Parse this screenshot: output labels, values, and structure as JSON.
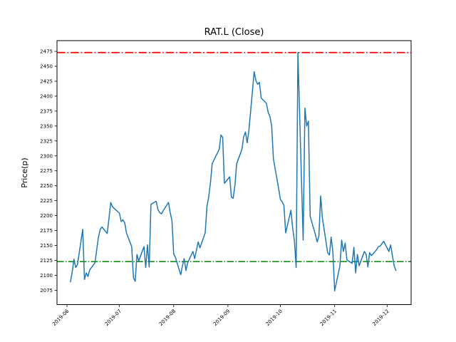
{
  "figure": {
    "title": "RAT.L (Close)",
    "ylabel": "Price(p)",
    "background": "#ffffff",
    "spine_color": "#000000",
    "text_color": "#000000"
  },
  "chart_data": {
    "type": "line",
    "title": "RAT.L (Close)",
    "xlabel": "",
    "ylabel": "Price(p)",
    "grid": false,
    "legend": null,
    "ylim": [
      2051,
      2493
    ],
    "xlim_days_from_2019_06_01": [
      -5.7,
      196.7
    ],
    "yticks": [
      2075,
      2100,
      2125,
      2150,
      2175,
      2200,
      2225,
      2250,
      2275,
      2300,
      2325,
      2350,
      2375,
      2400,
      2425,
      2450,
      2475
    ],
    "xticks": [
      {
        "label": "2019-06",
        "day": 0
      },
      {
        "label": "2019-07",
        "day": 30
      },
      {
        "label": "2019-08",
        "day": 61
      },
      {
        "label": "2019-09",
        "day": 92
      },
      {
        "label": "2019-10",
        "day": 122
      },
      {
        "label": "2019-11",
        "day": 153
      },
      {
        "label": "2019-12",
        "day": 183
      }
    ],
    "reference_lines": [
      {
        "name": "upper-reference",
        "value": 2473,
        "color": "#ff0000",
        "style": "dashdot",
        "width": 1.8
      },
      {
        "name": "lower-reference",
        "value": 2123,
        "color": "#008000",
        "style": "dashdot",
        "width": 1.5
      }
    ],
    "series": [
      {
        "name": "Close",
        "color": "#1f77b4",
        "width": 1.5,
        "points": [
          [
            "2019-06-03",
            2089
          ],
          [
            "2019-06-04",
            2106
          ],
          [
            "2019-06-05",
            2127
          ],
          [
            "2019-06-06",
            2113
          ],
          [
            "2019-06-07",
            2118
          ],
          [
            "2019-06-10",
            2177
          ],
          [
            "2019-06-11",
            2093
          ],
          [
            "2019-06-12",
            2104
          ],
          [
            "2019-06-13",
            2098
          ],
          [
            "2019-06-14",
            2109
          ],
          [
            "2019-06-17",
            2121
          ],
          [
            "2019-06-18",
            2143
          ],
          [
            "2019-06-19",
            2164
          ],
          [
            "2019-06-20",
            2177
          ],
          [
            "2019-06-21",
            2181
          ],
          [
            "2019-06-24",
            2170
          ],
          [
            "2019-06-25",
            2195
          ],
          [
            "2019-06-26",
            2222
          ],
          [
            "2019-06-27",
            2215
          ],
          [
            "2019-06-28",
            2212
          ],
          [
            "2019-07-01",
            2204
          ],
          [
            "2019-07-02",
            2190
          ],
          [
            "2019-07-03",
            2193
          ],
          [
            "2019-07-04",
            2188
          ],
          [
            "2019-07-05",
            2171
          ],
          [
            "2019-07-08",
            2148
          ],
          [
            "2019-07-09",
            2096
          ],
          [
            "2019-07-10",
            2090
          ],
          [
            "2019-07-11",
            2135
          ],
          [
            "2019-07-12",
            2124
          ],
          [
            "2019-07-15",
            2148
          ],
          [
            "2019-07-16",
            2113
          ],
          [
            "2019-07-17",
            2151
          ],
          [
            "2019-07-18",
            2114
          ],
          [
            "2019-07-19",
            2219
          ],
          [
            "2019-07-22",
            2224
          ],
          [
            "2019-07-23",
            2210
          ],
          [
            "2019-07-24",
            2205
          ],
          [
            "2019-07-25",
            2203
          ],
          [
            "2019-07-26",
            2208
          ],
          [
            "2019-07-29",
            2222
          ],
          [
            "2019-07-30",
            2205
          ],
          [
            "2019-07-31",
            2192
          ],
          [
            "2019-08-01",
            2136
          ],
          [
            "2019-08-02",
            2130
          ],
          [
            "2019-08-05",
            2101
          ],
          [
            "2019-08-06",
            2116
          ],
          [
            "2019-08-07",
            2128
          ],
          [
            "2019-08-08",
            2108
          ],
          [
            "2019-08-09",
            2121
          ],
          [
            "2019-08-12",
            2140
          ],
          [
            "2019-08-13",
            2128
          ],
          [
            "2019-08-14",
            2142
          ],
          [
            "2019-08-15",
            2156
          ],
          [
            "2019-08-16",
            2146
          ],
          [
            "2019-08-19",
            2171
          ],
          [
            "2019-08-20",
            2215
          ],
          [
            "2019-08-21",
            2231
          ],
          [
            "2019-08-22",
            2255
          ],
          [
            "2019-08-23",
            2287
          ],
          [
            "2019-08-27",
            2311
          ],
          [
            "2019-08-28",
            2335
          ],
          [
            "2019-08-29",
            2331
          ],
          [
            "2019-08-30",
            2254
          ],
          [
            "2019-09-02",
            2265
          ],
          [
            "2019-09-03",
            2231
          ],
          [
            "2019-09-04",
            2229
          ],
          [
            "2019-09-05",
            2251
          ],
          [
            "2019-09-06",
            2287
          ],
          [
            "2019-09-09",
            2311
          ],
          [
            "2019-09-10",
            2332
          ],
          [
            "2019-09-11",
            2340
          ],
          [
            "2019-09-12",
            2322
          ],
          [
            "2019-09-13",
            2343
          ],
          [
            "2019-09-16",
            2441
          ],
          [
            "2019-09-17",
            2426
          ],
          [
            "2019-09-18",
            2420
          ],
          [
            "2019-09-19",
            2423
          ],
          [
            "2019-09-20",
            2397
          ],
          [
            "2019-09-23",
            2388
          ],
          [
            "2019-09-24",
            2373
          ],
          [
            "2019-09-25",
            2366
          ],
          [
            "2019-09-26",
            2350
          ],
          [
            "2019-09-27",
            2295
          ],
          [
            "2019-09-30",
            2245
          ],
          [
            "2019-10-01",
            2227
          ],
          [
            "2019-10-02",
            2223
          ],
          [
            "2019-10-03",
            2217
          ],
          [
            "2019-10-04",
            2171
          ],
          [
            "2019-10-07",
            2209
          ],
          [
            "2019-10-08",
            2179
          ],
          [
            "2019-10-09",
            2158
          ],
          [
            "2019-10-10",
            2113
          ],
          [
            "2019-10-11",
            2473
          ],
          [
            "2019-10-14",
            2159
          ],
          [
            "2019-10-15",
            2380
          ],
          [
            "2019-10-16",
            2350
          ],
          [
            "2019-10-17",
            2358
          ],
          [
            "2019-10-18",
            2199
          ],
          [
            "2019-10-21",
            2168
          ],
          [
            "2019-10-22",
            2156
          ],
          [
            "2019-10-23",
            2166
          ],
          [
            "2019-10-24",
            2233
          ],
          [
            "2019-10-25",
            2196
          ],
          [
            "2019-10-28",
            2138
          ],
          [
            "2019-10-29",
            2134
          ],
          [
            "2019-10-30",
            2164
          ],
          [
            "2019-10-31",
            2138
          ],
          [
            "2019-11-01",
            2074
          ],
          [
            "2019-11-04",
            2116
          ],
          [
            "2019-11-05",
            2159
          ],
          [
            "2019-11-06",
            2140
          ],
          [
            "2019-11-07",
            2154
          ],
          [
            "2019-11-08",
            2126
          ],
          [
            "2019-11-11",
            2120
          ],
          [
            "2019-11-12",
            2147
          ],
          [
            "2019-11-13",
            2104
          ],
          [
            "2019-11-14",
            2135
          ],
          [
            "2019-11-15",
            2116
          ],
          [
            "2019-11-18",
            2140
          ],
          [
            "2019-11-19",
            2135
          ],
          [
            "2019-11-20",
            2114
          ],
          [
            "2019-11-21",
            2138
          ],
          [
            "2019-11-22",
            2133
          ],
          [
            "2019-11-25",
            2143
          ],
          [
            "2019-11-26",
            2148
          ],
          [
            "2019-11-27",
            2149
          ],
          [
            "2019-11-28",
            2153
          ],
          [
            "2019-11-29",
            2157
          ],
          [
            "2019-12-02",
            2140
          ],
          [
            "2019-12-03",
            2151
          ],
          [
            "2019-12-04",
            2133
          ],
          [
            "2019-12-05",
            2116
          ],
          [
            "2019-12-06",
            2108
          ]
        ]
      }
    ]
  }
}
